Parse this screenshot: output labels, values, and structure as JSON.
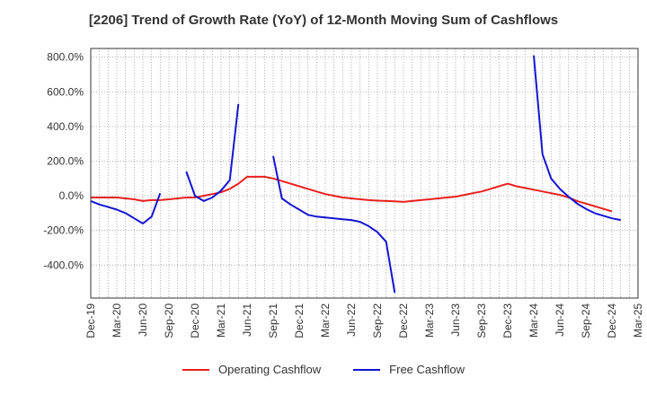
{
  "chart_data": {
    "type": "line",
    "title": "[2206]  Trend of Growth Rate (YoY) of 12-Month Moving Sum of Cashflows",
    "xlabel": "",
    "ylabel": "",
    "y_unit": "%",
    "ylim": [
      -590,
      850
    ],
    "y_ticks": [
      800,
      600,
      400,
      200,
      0,
      -200,
      -400
    ],
    "y_tick_labels": [
      "800.0%",
      "600.0%",
      "400.0%",
      "200.0%",
      "0.0%",
      "-200.0%",
      "-400.0%"
    ],
    "x_tick_labels": [
      "Dec-19",
      "Mar-20",
      "Jun-20",
      "Sep-20",
      "Dec-20",
      "Mar-21",
      "Jun-21",
      "Sep-21",
      "Dec-21",
      "Mar-22",
      "Jun-22",
      "Sep-22",
      "Dec-22",
      "Mar-23",
      "Jun-23",
      "Sep-23",
      "Dec-23",
      "Mar-24",
      "Jun-24",
      "Sep-24",
      "Dec-24",
      "Mar-25"
    ],
    "x": [
      "Dec-19",
      "Jan-20",
      "Feb-20",
      "Mar-20",
      "Apr-20",
      "May-20",
      "Jun-20",
      "Jul-20",
      "Aug-20",
      "Sep-20",
      "Oct-20",
      "Nov-20",
      "Dec-20",
      "Jan-21",
      "Feb-21",
      "Mar-21",
      "Apr-21",
      "May-21",
      "Jun-21",
      "Jul-21",
      "Aug-21",
      "Sep-21",
      "Oct-21",
      "Nov-21",
      "Dec-21",
      "Jan-22",
      "Feb-22",
      "Mar-22",
      "Apr-22",
      "May-22",
      "Jun-22",
      "Jul-22",
      "Aug-22",
      "Sep-22",
      "Oct-22",
      "Nov-22",
      "Dec-22",
      "Jan-23",
      "Feb-23",
      "Mar-23",
      "Apr-23",
      "May-23",
      "Jun-23",
      "Jul-23",
      "Aug-23",
      "Sep-23",
      "Oct-23",
      "Nov-23",
      "Dec-23",
      "Jan-24",
      "Feb-24",
      "Mar-24",
      "Apr-24",
      "May-24",
      "Jun-24",
      "Jul-24",
      "Aug-24",
      "Sep-24",
      "Oct-24",
      "Nov-24",
      "Dec-24",
      "Jan-25",
      "Feb-25",
      "Mar-25"
    ],
    "grid": true,
    "legend_position": "bottom",
    "series": [
      {
        "name": "Operating Cashflow",
        "color": "#e8201c",
        "values": [
          -10,
          -10,
          -10,
          -10,
          -15,
          -20,
          -30,
          -25,
          -25,
          -20,
          -15,
          -10,
          -10,
          0,
          10,
          20,
          40,
          70,
          110,
          110,
          110,
          100,
          85,
          70,
          55,
          40,
          25,
          10,
          0,
          -10,
          -15,
          -20,
          -25,
          -28,
          -30,
          -32,
          -35,
          -30,
          -25,
          -20,
          -15,
          -10,
          -5,
          5,
          15,
          25,
          40,
          55,
          70,
          55,
          45,
          35,
          25,
          15,
          5,
          -10,
          -30,
          -45,
          -60,
          -75,
          -90,
          null,
          null,
          null
        ]
      },
      {
        "name": "Free Cashflow",
        "color": "#1414d2",
        "values": [
          -30,
          -50,
          -65,
          -80,
          -100,
          -130,
          -160,
          -120,
          15,
          null,
          null,
          140,
          0,
          -30,
          -10,
          30,
          90,
          530,
          null,
          null,
          null,
          230,
          -15,
          -50,
          -80,
          -110,
          -120,
          -125,
          -130,
          -135,
          -140,
          -150,
          -175,
          -210,
          -265,
          -560,
          null,
          null,
          null,
          null,
          null,
          null,
          null,
          null,
          null,
          null,
          null,
          null,
          null,
          null,
          null,
          810,
          240,
          100,
          40,
          -5,
          -45,
          -75,
          -100,
          -115,
          -130,
          -140,
          null,
          null
        ]
      }
    ]
  }
}
